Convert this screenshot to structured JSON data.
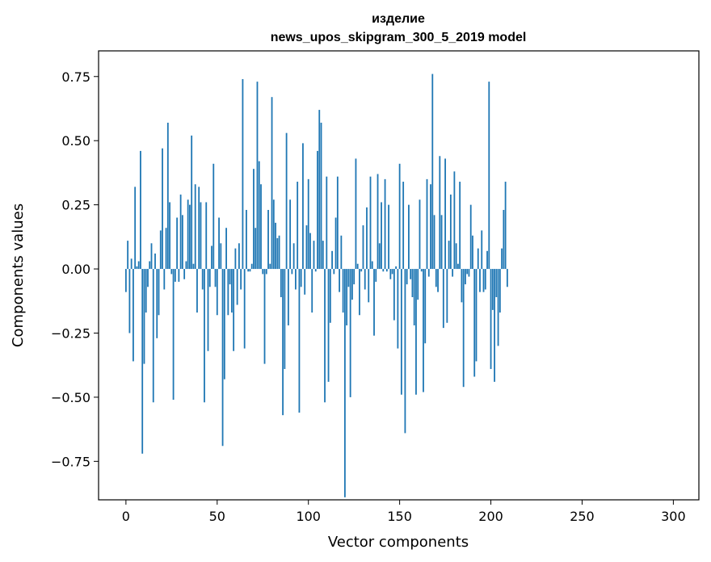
{
  "chart_data": {
    "type": "bar",
    "title_line1": "изделие",
    "title_line2": "news_upos_skipgram_300_5_2019 model",
    "xlabel": "Vector components",
    "ylabel": "Components values",
    "xlim": [
      -15,
      314
    ],
    "ylim": [
      -0.9,
      0.85
    ],
    "xticks": [
      0,
      50,
      100,
      150,
      200,
      250,
      300
    ],
    "xtick_labels": [
      "0",
      "50",
      "100",
      "150",
      "200",
      "250",
      "300"
    ],
    "yticks": [
      -0.75,
      -0.5,
      -0.25,
      0.0,
      0.25,
      0.5,
      0.75
    ],
    "ytick_labels": [
      "−0.75",
      "−0.50",
      "−0.25",
      "0.00",
      "0.25",
      "0.50",
      "0.75"
    ],
    "bar_color": "#1f77b4",
    "grid": false,
    "x_start": 0,
    "values": [
      -0.09,
      0.11,
      -0.25,
      0.04,
      -0.36,
      0.32,
      0.01,
      0.03,
      0.46,
      -0.72,
      -0.37,
      -0.17,
      -0.07,
      0.03,
      0.1,
      -0.52,
      0.06,
      -0.27,
      -0.18,
      0.15,
      0.47,
      -0.08,
      0.16,
      0.57,
      0.26,
      -0.02,
      -0.51,
      -0.05,
      0.2,
      -0.05,
      0.29,
      0.21,
      -0.04,
      0.03,
      0.27,
      0.25,
      0.52,
      0.02,
      0.33,
      -0.17,
      0.32,
      0.26,
      -0.08,
      -0.52,
      0.26,
      -0.32,
      -0.07,
      0.09,
      0.41,
      -0.07,
      -0.18,
      0.2,
      0.1,
      -0.69,
      -0.43,
      0.16,
      -0.18,
      -0.06,
      -0.17,
      -0.32,
      0.08,
      -0.14,
      0.1,
      -0.08,
      0.74,
      -0.31,
      0.23,
      -0.01,
      -0.01,
      0.02,
      0.39,
      0.16,
      0.73,
      0.42,
      0.33,
      -0.02,
      -0.37,
      -0.02,
      0.23,
      0.02,
      0.67,
      0.27,
      0.18,
      0.12,
      0.13,
      -0.11,
      -0.57,
      -0.39,
      0.53,
      -0.22,
      0.27,
      -0.02,
      0.1,
      -0.08,
      0.34,
      -0.56,
      -0.07,
      0.49,
      -0.1,
      0.17,
      0.35,
      0.14,
      -0.17,
      0.11,
      -0.01,
      0.46,
      0.62,
      0.57,
      0.11,
      -0.52,
      0.36,
      -0.44,
      -0.21,
      0.07,
      -0.02,
      0.2,
      0.36,
      -0.09,
      0.13,
      -0.17,
      -0.89,
      -0.22,
      -0.07,
      -0.5,
      -0.12,
      -0.06,
      0.43,
      0.02,
      -0.18,
      -0.01,
      0.17,
      -0.08,
      0.24,
      -0.13,
      0.36,
      0.03,
      -0.26,
      -0.05,
      0.37,
      0.1,
      0.26,
      -0.01,
      0.35,
      -0.01,
      0.25,
      -0.04,
      -0.02,
      -0.2,
      0.01,
      -0.31,
      0.41,
      -0.49,
      0.34,
      -0.64,
      -0.06,
      0.25,
      -0.04,
      -0.11,
      -0.22,
      -0.49,
      -0.12,
      0.27,
      -0.01,
      -0.48,
      -0.29,
      0.35,
      -0.03,
      0.33,
      0.76,
      0.21,
      -0.07,
      -0.09,
      0.44,
      0.21,
      -0.23,
      0.43,
      -0.21,
      0.11,
      0.29,
      -0.03,
      0.38,
      0.1,
      0.02,
      0.34,
      -0.13,
      -0.46,
      -0.06,
      -0.02,
      -0.03,
      0.25,
      0.13,
      -0.42,
      -0.36,
      0.08,
      -0.09,
      0.15,
      -0.09,
      -0.08,
      0.07,
      0.73,
      -0.39,
      -0.16,
      -0.44,
      -0.11,
      -0.3,
      -0.17,
      0.08,
      0.23,
      0.34,
      -0.07
    ]
  }
}
